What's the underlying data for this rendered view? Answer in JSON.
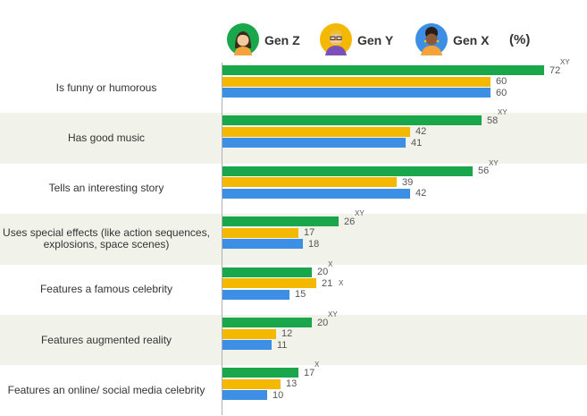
{
  "chart_data": {
    "type": "bar",
    "orientation": "horizontal",
    "unit": "(%)",
    "categories": [
      "Is funny or humorous",
      "Has good music",
      "Tells an interesting story",
      "Uses special effects (like action sequences, explosions, space scenes)",
      "Features a famous celebrity",
      "Features augmented reality",
      "Features an online/ social media celebrity"
    ],
    "series": [
      {
        "name": "Gen Z",
        "color": "#1aa64a",
        "icon": "avatar-girl-icon",
        "values": [
          72,
          58,
          56,
          26,
          20,
          20,
          17
        ],
        "sig": [
          "XY",
          "XY",
          "XY",
          "XY",
          "X",
          "XY",
          "X"
        ]
      },
      {
        "name": "Gen Y",
        "color": "#f5b800",
        "icon": "avatar-guy-glasses-icon",
        "values": [
          60,
          42,
          39,
          17,
          21,
          12,
          13
        ],
        "sig": [
          "",
          "",
          "",
          "",
          "X",
          "",
          ""
        ]
      },
      {
        "name": "Gen X",
        "color": "#3d8fe6",
        "icon": "avatar-woman-icon",
        "values": [
          60,
          41,
          42,
          18,
          15,
          11,
          10
        ],
        "sig": [
          "",
          "",
          "",
          "",
          "",
          "",
          ""
        ]
      }
    ],
    "xlim": [
      0,
      80
    ],
    "legend_position": "top"
  }
}
